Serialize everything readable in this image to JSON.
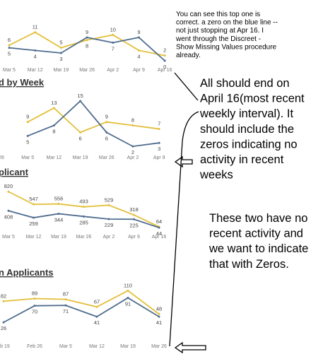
{
  "chart_data": [
    {
      "type": "line",
      "categories": [
        "Mar 5",
        "Mar 12",
        "Mar 19",
        "Mar 26",
        "Apr 2",
        "Apr 9",
        "Apr 16"
      ],
      "series": [
        {
          "color": "#e3bf3a",
          "values": [
            6,
            11,
            5,
            8,
            10,
            4,
            2
          ]
        },
        {
          "color": "#4f6d8f",
          "values": [
            5,
            4,
            3,
            9,
            7,
            9,
            0
          ]
        }
      ],
      "ylim": [
        0,
        12
      ]
    },
    {
      "type": "line",
      "title": "d by Week",
      "categories": [
        "26",
        "Mar 5",
        "Mar 12",
        "Mar 19",
        "Mar 26",
        "Apr 2",
        "Apr 9"
      ],
      "series": [
        {
          "color": "#e3bf3a",
          "values": [
            null,
            9,
            13,
            6,
            9,
            8,
            7
          ]
        },
        {
          "color": "#4f6d8f",
          "values": [
            null,
            5,
            8,
            15,
            6,
            2,
            3
          ]
        }
      ],
      "ylim": [
        0,
        16
      ]
    },
    {
      "type": "line",
      "title": "plicant",
      "categories": [
        "Mar 5",
        "Mar 12",
        "Mar 19",
        "Mar 26",
        "Apr 2",
        "Apr 9",
        "Apr 16"
      ],
      "series": [
        {
          "color": "#e3bf3a",
          "values": [
            820,
            547,
            556,
            493,
            529,
            318,
            64
          ]
        },
        {
          "color": "#4f6d8f",
          "values": [
            408,
            259,
            344,
            285,
            229,
            225,
            44
          ]
        }
      ],
      "ylim": [
        0,
        900
      ]
    },
    {
      "type": "line",
      "title": "n Applicants",
      "categories": [
        "eb 19",
        "Feb 26",
        "Mar 5",
        "Mar 12",
        "Mar 19",
        "Mar 26"
      ],
      "series": [
        {
          "color": "#e3bf3a",
          "values": [
            82,
            89,
            87,
            67,
            110,
            48
          ]
        },
        {
          "color": "#4f6d8f",
          "values": [
            26,
            70,
            71,
            41,
            91,
            41
          ]
        }
      ],
      "ylim": [
        0,
        120
      ]
    }
  ],
  "annotations": [
    {
      "lines": [
        "You can see this top one is",
        "correct. a zero on the blue line --",
        "not just stopping at Apr 16. I",
        "went through the Discreet -",
        "Show Missing Values procedure",
        "already."
      ]
    },
    {
      "lines": [
        "All should end on",
        "April 16(most recent",
        "weekly interval). It",
        "should include the",
        "zeros indicating no",
        "activity in recent",
        "weeks"
      ]
    },
    {
      "lines": [
        "These two have no",
        "recent activity and",
        "we want to indicate",
        "that with Zeros."
      ]
    }
  ]
}
